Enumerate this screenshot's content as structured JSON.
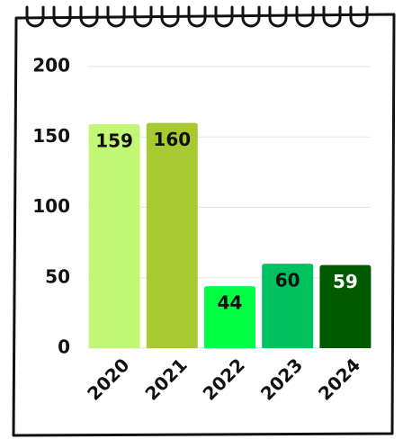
{
  "chart_data": {
    "type": "bar",
    "categories": [
      "2020",
      "2021",
      "2022",
      "2023",
      "2024"
    ],
    "values": [
      159,
      160,
      44,
      60,
      59
    ],
    "colors": [
      "#c2f776",
      "#a9c932",
      "#00ff44",
      "#00c060",
      "#005a00"
    ],
    "ylim": [
      0,
      200
    ],
    "yticks": [
      0,
      50,
      100,
      150,
      200
    ],
    "grid": true
  }
}
